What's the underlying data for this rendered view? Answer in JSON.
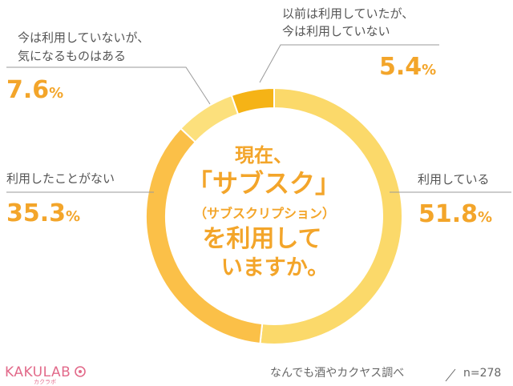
{
  "chart_data": {
    "type": "pie",
    "variant": "donut",
    "title_lines": [
      "現在、",
      "「サブスク」",
      "（サブスクリプション）",
      "を利用して",
      "いますか。"
    ],
    "slices": [
      {
        "label": "利用している",
        "value": 51.8,
        "color": "#fbd96a"
      },
      {
        "label": "利用したことがない",
        "value": 35.3,
        "color": "#fbc048"
      },
      {
        "label_lines": [
          "今は利用していないが、",
          "気になるものはある"
        ],
        "value": 7.6,
        "color": "#fce07c"
      },
      {
        "label_lines": [
          "以前は利用していたが、",
          "今は利用していない"
        ],
        "value": 5.4,
        "color": "#f5b316"
      }
    ],
    "unit": "%"
  },
  "footer": {
    "source": "なんでも酒やカクヤス調べ",
    "sample": "n=278"
  },
  "logo": {
    "text": "KAKULAB",
    "sub": "カクラボ"
  }
}
